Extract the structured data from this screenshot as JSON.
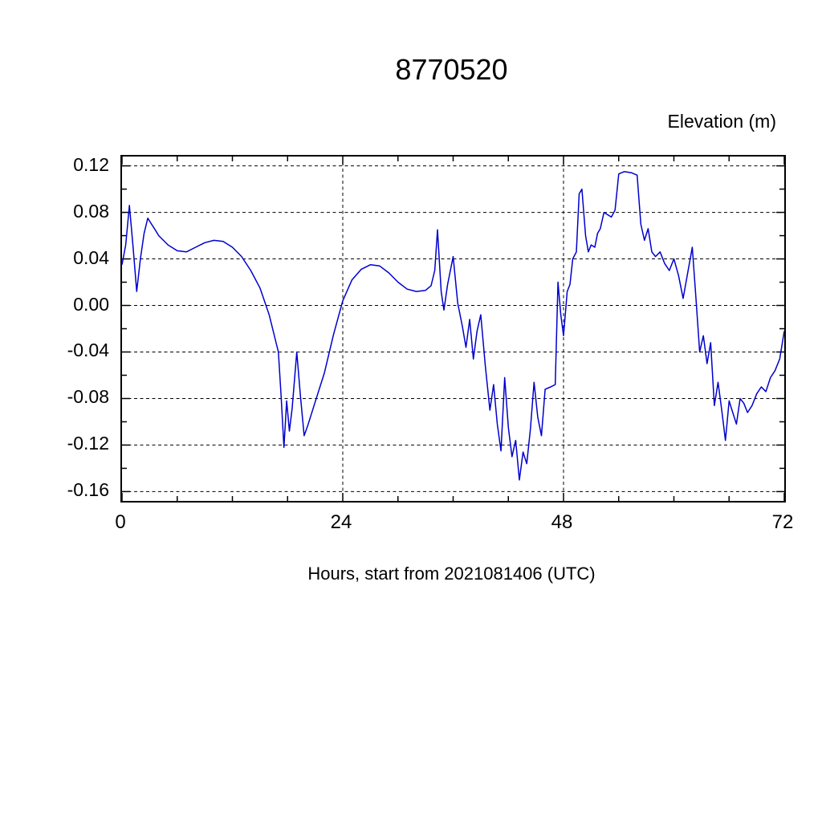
{
  "chart_data": {
    "type": "line",
    "title": "8770520",
    "ylabel": "Elevation (m)",
    "xlabel": "Hours, start from 2021081406 (UTC)",
    "xlim": [
      0,
      72
    ],
    "ylim": [
      -0.168,
      0.128
    ],
    "x_major_ticks": [
      0,
      24,
      48,
      72
    ],
    "x_tick_labels": [
      "0",
      "24",
      "48",
      "72"
    ],
    "x_minor_step": 6,
    "y_major_ticks": [
      0.12,
      0.08,
      0.04,
      0.0,
      -0.04,
      -0.08,
      -0.12,
      -0.16
    ],
    "y_tick_labels": [
      "0.12",
      "0.08",
      "0.04",
      "0.00",
      "-0.04",
      "-0.08",
      "-0.12",
      "-0.16"
    ],
    "y_minor_step": 0.02,
    "grid": {
      "horizontal_at": [
        0.12,
        0.08,
        0.04,
        0.0,
        -0.04,
        -0.08,
        -0.12,
        -0.16
      ],
      "vertical_at": [
        24,
        48
      ],
      "style": "dashed",
      "color": "#000000"
    },
    "legend": "none",
    "line_color": "#0000cd",
    "frame_color": "#000000",
    "series": [
      {
        "name": "elevation",
        "points": [
          [
            0,
            0.035
          ],
          [
            0.4,
            0.052
          ],
          [
            0.8,
            0.086
          ],
          [
            1.2,
            0.05
          ],
          [
            1.6,
            0.012
          ],
          [
            2.0,
            0.04
          ],
          [
            2.4,
            0.062
          ],
          [
            2.8,
            0.075
          ],
          [
            3.2,
            0.07
          ],
          [
            3.6,
            0.065
          ],
          [
            4,
            0.06
          ],
          [
            5,
            0.052
          ],
          [
            6,
            0.047
          ],
          [
            7,
            0.046
          ],
          [
            8,
            0.05
          ],
          [
            9,
            0.054
          ],
          [
            10,
            0.056
          ],
          [
            11,
            0.055
          ],
          [
            12,
            0.05
          ],
          [
            13,
            0.042
          ],
          [
            14,
            0.03
          ],
          [
            15,
            0.015
          ],
          [
            16,
            -0.008
          ],
          [
            17,
            -0.04
          ],
          [
            17.3,
            -0.078
          ],
          [
            17.6,
            -0.122
          ],
          [
            17.9,
            -0.082
          ],
          [
            18.2,
            -0.108
          ],
          [
            18.5,
            -0.088
          ],
          [
            19,
            -0.04
          ],
          [
            19.4,
            -0.078
          ],
          [
            19.8,
            -0.112
          ],
          [
            20.2,
            -0.103
          ],
          [
            21,
            -0.083
          ],
          [
            22,
            -0.058
          ],
          [
            23,
            -0.025
          ],
          [
            24,
            0.004
          ],
          [
            25,
            0.022
          ],
          [
            26,
            0.031
          ],
          [
            27,
            0.035
          ],
          [
            28,
            0.034
          ],
          [
            29,
            0.028
          ],
          [
            30,
            0.02
          ],
          [
            31,
            0.014
          ],
          [
            32,
            0.012
          ],
          [
            33,
            0.013
          ],
          [
            33.6,
            0.017
          ],
          [
            34,
            0.03
          ],
          [
            34.3,
            0.065
          ],
          [
            34.7,
            0.012
          ],
          [
            35,
            -0.004
          ],
          [
            35.4,
            0.018
          ],
          [
            36,
            0.042
          ],
          [
            36.5,
            0.002
          ],
          [
            37,
            -0.018
          ],
          [
            37.4,
            -0.036
          ],
          [
            37.8,
            -0.012
          ],
          [
            38.2,
            -0.046
          ],
          [
            38.6,
            -0.022
          ],
          [
            39,
            -0.008
          ],
          [
            39.5,
            -0.052
          ],
          [
            40,
            -0.09
          ],
          [
            40.4,
            -0.068
          ],
          [
            40.8,
            -0.102
          ],
          [
            41.2,
            -0.125
          ],
          [
            41.6,
            -0.062
          ],
          [
            42,
            -0.105
          ],
          [
            42.4,
            -0.13
          ],
          [
            42.8,
            -0.116
          ],
          [
            43.2,
            -0.15
          ],
          [
            43.6,
            -0.126
          ],
          [
            44,
            -0.136
          ],
          [
            44.4,
            -0.106
          ],
          [
            44.8,
            -0.066
          ],
          [
            45.2,
            -0.096
          ],
          [
            45.6,
            -0.112
          ],
          [
            46,
            -0.072
          ],
          [
            46.6,
            -0.07
          ],
          [
            47.1,
            -0.068
          ],
          [
            47.4,
            0.02
          ],
          [
            47.7,
            -0.008
          ],
          [
            48,
            -0.026
          ],
          [
            48.4,
            0.012
          ],
          [
            48.7,
            0.018
          ],
          [
            49,
            0.04
          ],
          [
            49.4,
            0.046
          ],
          [
            49.7,
            0.096
          ],
          [
            50,
            0.1
          ],
          [
            50.4,
            0.06
          ],
          [
            50.7,
            0.046
          ],
          [
            51,
            0.052
          ],
          [
            51.4,
            0.05
          ],
          [
            51.7,
            0.062
          ],
          [
            52,
            0.066
          ],
          [
            52.4,
            0.08
          ],
          [
            52.8,
            0.078
          ],
          [
            53.2,
            0.076
          ],
          [
            53.6,
            0.082
          ],
          [
            54,
            0.113
          ],
          [
            54.6,
            0.115
          ],
          [
            55.4,
            0.114
          ],
          [
            56,
            0.112
          ],
          [
            56.4,
            0.07
          ],
          [
            56.8,
            0.056
          ],
          [
            57.2,
            0.066
          ],
          [
            57.6,
            0.046
          ],
          [
            58,
            0.042
          ],
          [
            58.5,
            0.046
          ],
          [
            59,
            0.036
          ],
          [
            59.5,
            0.03
          ],
          [
            60,
            0.04
          ],
          [
            60.5,
            0.026
          ],
          [
            61,
            0.006
          ],
          [
            61.5,
            0.028
          ],
          [
            62,
            0.05
          ],
          [
            62.4,
            0.006
          ],
          [
            62.8,
            -0.04
          ],
          [
            63.2,
            -0.026
          ],
          [
            63.6,
            -0.05
          ],
          [
            64,
            -0.032
          ],
          [
            64.4,
            -0.086
          ],
          [
            64.8,
            -0.066
          ],
          [
            65.2,
            -0.09
          ],
          [
            65.6,
            -0.116
          ],
          [
            66,
            -0.082
          ],
          [
            66.4,
            -0.092
          ],
          [
            66.8,
            -0.102
          ],
          [
            67.2,
            -0.08
          ],
          [
            67.6,
            -0.084
          ],
          [
            68,
            -0.092
          ],
          [
            68.5,
            -0.086
          ],
          [
            69,
            -0.076
          ],
          [
            69.5,
            -0.07
          ],
          [
            70,
            -0.074
          ],
          [
            70.5,
            -0.062
          ],
          [
            71,
            -0.056
          ],
          [
            71.5,
            -0.046
          ],
          [
            72,
            -0.022
          ]
        ]
      }
    ]
  }
}
